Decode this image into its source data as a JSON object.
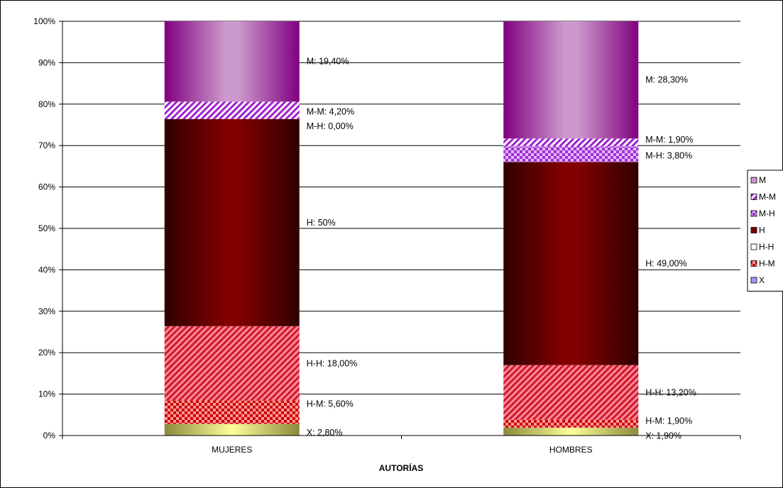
{
  "chart_data": {
    "type": "bar",
    "stacked": true,
    "percent": true,
    "title": "",
    "xlabel": "AUTORÍAS",
    "ylabel": "",
    "ylim": [
      0,
      100
    ],
    "y_ticks": [
      "0%",
      "10%",
      "20%",
      "30%",
      "40%",
      "50%",
      "60%",
      "70%",
      "80%",
      "90%",
      "100%"
    ],
    "grid": true,
    "legend_position": "right",
    "categories": [
      "MUJERES",
      "HOMBRES"
    ],
    "series": [
      {
        "name": "X",
        "values": [
          2.8,
          1.9
        ],
        "labels": [
          "X: 2,80%",
          "X: 1,90%"
        ],
        "color": "#ffff99",
        "pattern": "solid"
      },
      {
        "name": "H-M",
        "values": [
          5.6,
          1.9
        ],
        "labels": [
          "H-M: 5,60%",
          "H-M: 1,90%"
        ],
        "color": "#ff2a2a",
        "pattern": "checker"
      },
      {
        "name": "H-H",
        "values": [
          18.0,
          13.2
        ],
        "labels": [
          "H-H: 18,00%",
          "H-H: 13,20%"
        ],
        "color": "#ff6b7a",
        "pattern": "diag"
      },
      {
        "name": "H",
        "values": [
          50.0,
          49.0
        ],
        "labels": [
          "H: 50%",
          "H: 49,00%"
        ],
        "color": "#7a0000",
        "pattern": "solid"
      },
      {
        "name": "M-H",
        "values": [
          0.0,
          3.8
        ],
        "labels": [
          "M-H: 0,00%",
          "M-H: 3,80%"
        ],
        "color": "#c060e0",
        "pattern": "checker"
      },
      {
        "name": "M-M",
        "values": [
          4.2,
          1.9
        ],
        "labels": [
          "M-M: 4,20%",
          "M-M: 1,90%"
        ],
        "color": "#a030d0",
        "pattern": "diag"
      },
      {
        "name": "M",
        "values": [
          19.4,
          28.3
        ],
        "labels": [
          "M: 19,40%",
          "M: 28,30%"
        ],
        "color": "#cc99cc",
        "pattern": "solid"
      }
    ],
    "legend_order": [
      "M",
      "M-M",
      "M-H",
      "H",
      "H-H",
      "H-M",
      "X"
    ]
  }
}
